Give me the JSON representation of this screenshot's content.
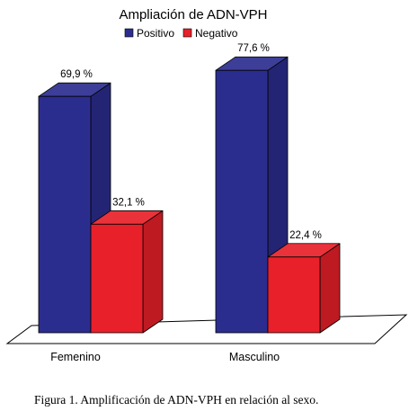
{
  "chart_data": {
    "type": "bar",
    "title": "Ampliación de ADN-VPH",
    "categories": [
      "Femenino",
      "Masculino"
    ],
    "series": [
      {
        "name": "Positivo",
        "values": [
          69.9,
          77.6
        ],
        "labels": [
          "69,9 %",
          "77,6 %"
        ],
        "color": "#2b2d8e"
      },
      {
        "name": "Negativo",
        "values": [
          32.1,
          22.4
        ],
        "labels": [
          "32,1 %",
          "22,4 %"
        ],
        "color": "#e8202a"
      }
    ],
    "ylim": [
      0,
      85
    ],
    "legend_position": "top",
    "grid": false,
    "xlabel": "",
    "ylabel": ""
  },
  "caption": "Figura 1. Amplificación de ADN-VPH en relación al sexo."
}
